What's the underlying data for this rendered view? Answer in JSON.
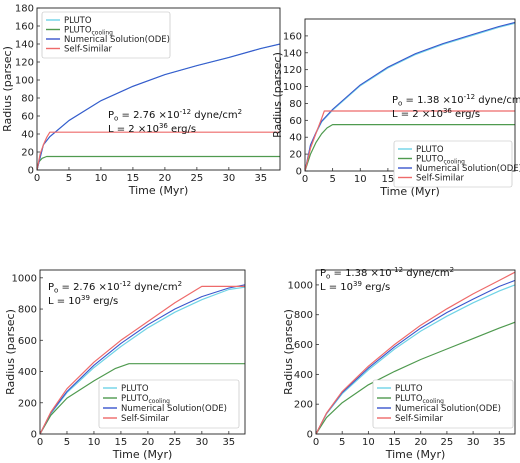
{
  "chart_data": [
    {
      "type": "line",
      "xlabel": "Time (Myr)",
      "ylabel": "Radius (parsec)",
      "xlim": [
        0,
        38
      ],
      "ylim": [
        0,
        180
      ],
      "xticks": [
        0,
        5,
        10,
        15,
        20,
        25,
        30,
        35
      ],
      "yticks": [
        0,
        20,
        40,
        60,
        80,
        100,
        120,
        140,
        160,
        180
      ],
      "legend_position": "top-left",
      "legend": [
        "PLUTO",
        "PLUTO_cooling",
        "Numerical Solution(ODE)",
        "Self-Similar"
      ],
      "annotation": [
        "P_o = 2.76 ×10^-12 dyne/cm^2",
        "L = 2 ×10^36 erg/s"
      ],
      "series": [
        {
          "name": "PLUTO",
          "color": "#6fd3e6",
          "x": [
            0,
            1,
            2,
            5,
            10,
            15,
            20,
            25,
            30,
            35,
            38
          ],
          "y": [
            0,
            28,
            37,
            55,
            77,
            93,
            106,
            116,
            125,
            135,
            140
          ]
        },
        {
          "name": "PLUTO_cooling",
          "color": "#4f9a4f",
          "x": [
            0,
            0.3,
            0.8,
            1.5,
            3,
            38
          ],
          "y": [
            0,
            9,
            13,
            15,
            15,
            15
          ]
        },
        {
          "name": "Numerical Solution(ODE)",
          "color": "#3a56cc",
          "x": [
            0,
            1,
            2,
            5,
            10,
            15,
            20,
            25,
            30,
            35,
            38
          ],
          "y": [
            0,
            28,
            37,
            55,
            77,
            93,
            106,
            116,
            125,
            135,
            140
          ]
        },
        {
          "name": "Self-Similar",
          "color": "#ee6a6a",
          "x": [
            0,
            0.5,
            1,
            1.5,
            2,
            38
          ],
          "y": [
            0,
            18,
            28,
            36,
            42,
            42
          ]
        }
      ]
    },
    {
      "type": "line",
      "xlabel": "Time (Myr)",
      "ylabel": "Radius (parsec)",
      "xlim": [
        0,
        38
      ],
      "ylim": [
        0,
        180
      ],
      "xticks": [
        0,
        5,
        10,
        15,
        20,
        25,
        30,
        35
      ],
      "yticks": [
        0,
        20,
        40,
        60,
        80,
        100,
        120,
        140,
        160
      ],
      "legend_position": "bottom-left",
      "legend": [
        "PLUTO",
        "PLUTO_cooling",
        "Numerical Solution(ODE)",
        "Self-Similar"
      ],
      "annotation": [
        "P_o = 1.38 ×10^-12 dyne/cm^2",
        "L = 2 ×10^36 erg/s"
      ],
      "series": [
        {
          "name": "PLUTO",
          "color": "#6fd3e6",
          "x": [
            0,
            1,
            2,
            3,
            5,
            10,
            15,
            20,
            25,
            30,
            35,
            38
          ],
          "y": [
            0,
            30,
            45,
            58,
            72,
            101,
            122,
            138,
            150,
            160,
            170,
            175
          ]
        },
        {
          "name": "PLUTO_cooling",
          "color": "#4f9a4f",
          "x": [
            0,
            1,
            2,
            3,
            4,
            5,
            38
          ],
          "y": [
            0,
            20,
            34,
            44,
            51,
            55,
            55
          ]
        },
        {
          "name": "Numerical Solution(ODE)",
          "color": "#3a56cc",
          "x": [
            0,
            1,
            2,
            3,
            5,
            10,
            15,
            20,
            25,
            30,
            35,
            38
          ],
          "y": [
            0,
            31,
            46,
            59,
            73,
            102,
            123,
            139,
            151,
            161,
            171,
            176
          ]
        },
        {
          "name": "Self-Similar",
          "color": "#ee6a6a",
          "x": [
            0,
            1,
            2,
            3,
            3.5,
            38
          ],
          "y": [
            0,
            27,
            45,
            62,
            71,
            71
          ]
        }
      ]
    },
    {
      "type": "line",
      "xlabel": "Time (Myr)",
      "ylabel": "Radius (parsec)",
      "xlim": [
        0,
        38
      ],
      "ylim": [
        0,
        1050
      ],
      "xticks": [
        0,
        5,
        10,
        15,
        20,
        25,
        30,
        35
      ],
      "yticks": [
        0,
        200,
        400,
        600,
        800,
        1000
      ],
      "legend_position": "bottom-right",
      "legend": [
        "PLUTO",
        "PLUTO_cooling",
        "Numerical Solution(ODE)",
        "Self-Similar"
      ],
      "annotation": [
        "P_o = 2.76 ×10^-12 dyne/cm^2",
        "L = 10^39 erg/s"
      ],
      "series": [
        {
          "name": "PLUTO",
          "color": "#6fd3e6",
          "x": [
            0,
            2,
            5,
            10,
            15,
            20,
            25,
            30,
            35,
            38
          ],
          "y": [
            0,
            130,
            265,
            425,
            560,
            680,
            780,
            860,
            925,
            940
          ]
        },
        {
          "name": "PLUTO_cooling",
          "color": "#4f9a4f",
          "x": [
            0,
            2,
            5,
            10,
            14,
            16.5,
            38
          ],
          "y": [
            0,
            120,
            230,
            340,
            420,
            450,
            450
          ]
        },
        {
          "name": "Numerical Solution(ODE)",
          "color": "#3a56cc",
          "x": [
            0,
            2,
            5,
            10,
            15,
            20,
            25,
            30,
            35,
            38
          ],
          "y": [
            0,
            135,
            272,
            440,
            580,
            700,
            800,
            880,
            935,
            955
          ]
        },
        {
          "name": "Self-Similar",
          "color": "#ee6a6a",
          "x": [
            0,
            2,
            5,
            10,
            15,
            20,
            25,
            30,
            38
          ],
          "y": [
            0,
            140,
            290,
            460,
            600,
            720,
            840,
            945,
            945
          ]
        }
      ]
    },
    {
      "type": "line",
      "xlabel": "Time (Myr)",
      "ylabel": "Radius (parsec)",
      "xlim": [
        0,
        38
      ],
      "ylim": [
        0,
        1100
      ],
      "xticks": [
        0,
        5,
        10,
        15,
        20,
        25,
        30,
        35
      ],
      "yticks": [
        0,
        200,
        400,
        600,
        800,
        1000
      ],
      "legend_position": "bottom-left",
      "legend": [
        "PLUTO",
        "PLUTO_cooling",
        "Numerical Solution(ODE)",
        "Self-Similar"
      ],
      "annotation": [
        "P_o = 1.38 ×10^-12 dyne/cm^2",
        "L = 10^39 erg/s"
      ],
      "series": [
        {
          "name": "PLUTO",
          "color": "#6fd3e6",
          "x": [
            0,
            2,
            5,
            10,
            15,
            20,
            25,
            30,
            35,
            38
          ],
          "y": [
            0,
            135,
            270,
            430,
            570,
            690,
            790,
            880,
            960,
            1000
          ]
        },
        {
          "name": "PLUTO_cooling",
          "color": "#4f9a4f",
          "x": [
            0,
            2,
            5,
            10,
            15,
            20,
            25,
            30,
            35,
            38
          ],
          "y": [
            0,
            110,
            210,
            330,
            420,
            500,
            570,
            640,
            710,
            750
          ]
        },
        {
          "name": "Numerical Solution(ODE)",
          "color": "#3a56cc",
          "x": [
            0,
            2,
            5,
            10,
            15,
            20,
            25,
            30,
            35,
            38
          ],
          "y": [
            0,
            138,
            278,
            442,
            585,
            710,
            815,
            905,
            990,
            1030
          ]
        },
        {
          "name": "Self-Similar",
          "color": "#ee6a6a",
          "x": [
            0,
            2,
            5,
            10,
            15,
            20,
            25,
            30,
            35,
            38
          ],
          "y": [
            0,
            140,
            285,
            455,
            600,
            730,
            840,
            940,
            1030,
            1085
          ]
        }
      ]
    }
  ]
}
